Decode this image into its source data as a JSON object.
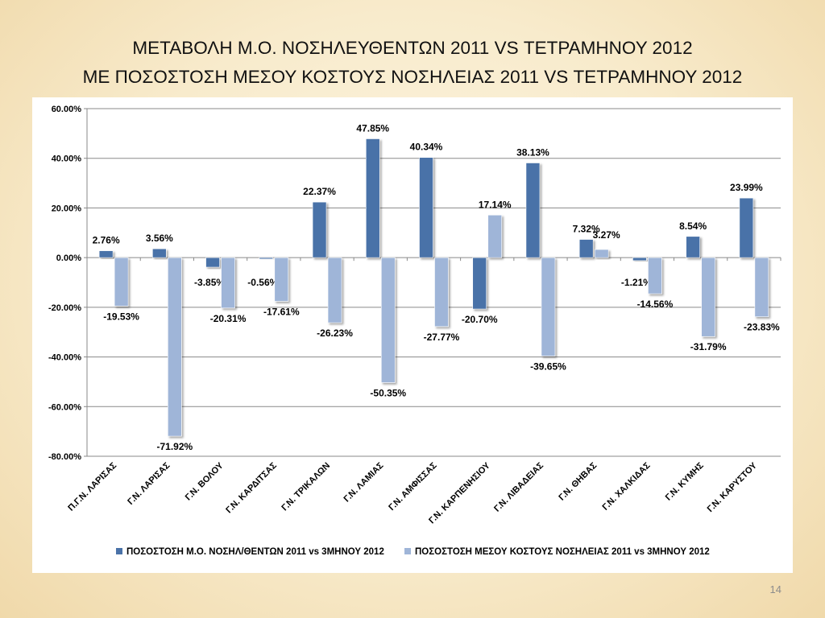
{
  "slide": {
    "title_line1": "ΜΕΤΑΒΟΛΗ Μ.Ο. ΝΟΣΗΛΕΥΘΕΝΤΩΝ 2011 VS ΤΕΤΡΑΜΗΝΟΥ 2012",
    "title_line2": "ΜΕ ΠΟΣΟΣΤΟΣΗ ΜΕΣΟΥ ΚΟΣΤΟΥΣ ΝΟΣΗΛΕΙΑΣ 2011 VS ΤΕΤΡΑΜΗΝΟΥ 2012",
    "slide_number": "14"
  },
  "colors": {
    "series1": "#4a72a8",
    "series2": "#9fb5d8",
    "grid": "#8a8a8a",
    "text": "#000000"
  },
  "chart_data": {
    "type": "bar",
    "title": "",
    "xlabel": "",
    "ylabel": "",
    "ylim": [
      -80,
      60
    ],
    "y_ticks": [
      "60.00%",
      "40.00%",
      "20.00%",
      "0.00%",
      "-20.00%",
      "-40.00%",
      "-60.00%",
      "-80.00%"
    ],
    "y_tick_values": [
      60,
      40,
      20,
      0,
      -20,
      -40,
      -60,
      -80
    ],
    "grid": true,
    "legend_position": "bottom",
    "categories": [
      "Π.Γ.Ν. ΛΑΡΙΣΑΣ",
      "Γ.Ν. ΛΑΡΙΣΑΣ",
      "Γ.Ν. ΒΟΛΟΥ",
      "Γ.Ν. ΚΑΡΔΙΤΣΑΣ",
      "Γ.Ν. ΤΡΙΚΑΛΩΝ",
      "Γ.Ν. ΛΑΜΙΑΣ",
      "Γ.Ν. ΑΜΦΙΣΣΑΣ",
      "Γ.Ν. ΚΑΡΠΕΝΗΣΙΟΥ",
      "Γ.Ν. ΛΙΒΑΔΕΙΑΣ",
      "Γ.Ν. ΘΗΒΑΣ",
      "Γ.Ν. ΧΑΛΚΙΔΑΣ",
      "Γ.Ν. ΚΥΜΗΣ",
      "Γ.Ν. ΚΑΡΥΣΤΟΥ"
    ],
    "series": [
      {
        "name": "ΠΟΣΟΣΤΟΣΗ Μ.Ο. ΝΟΣΗΛ/ΘΕΝΤΩΝ 2011 vs 3ΜΗΝΟΥ 2012",
        "values": [
          2.76,
          3.56,
          -3.85,
          -0.56,
          22.37,
          47.85,
          40.34,
          -20.7,
          38.13,
          7.32,
          -1.21,
          8.54,
          23.99
        ],
        "labels": [
          "2.76%",
          "3.56%",
          "-3.85%",
          "-0.56%",
          "22.37%",
          "47.85%",
          "40.34%",
          "-20.70%",
          "38.13%",
          "7.32%",
          "-1.21%",
          "8.54%",
          "23.99%"
        ]
      },
      {
        "name": "ΠΟΣΟΣΤΟΣΗ ΜΕΣΟΥ ΚΟΣΤΟΥΣ ΝΟΣΗΛΕΙΑΣ 2011 vs 3ΜΗΝΟΥ 2012",
        "values": [
          -19.53,
          -71.92,
          -20.31,
          -17.61,
          -26.23,
          -50.35,
          -27.77,
          17.14,
          -39.65,
          3.27,
          -14.56,
          -31.79,
          -23.83
        ],
        "labels": [
          "-19.53%",
          "-71.92%",
          "-20.31%",
          "-17.61%",
          "-26.23%",
          "-50.35%",
          "-27.77%",
          "17.14%",
          "-39.65%",
          "3.27%",
          "-14.56%",
          "-31.79%",
          "-23.83%"
        ]
      }
    ]
  }
}
